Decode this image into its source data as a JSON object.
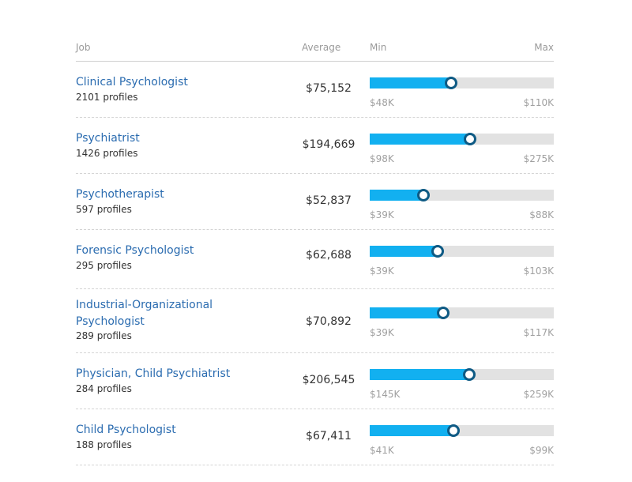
{
  "header": {
    "job": "Job",
    "average": "Average",
    "min": "Min",
    "max": "Max"
  },
  "colors": {
    "link": "#2b6cb0",
    "fill": "#12b0f0",
    "marker": "#0e5a84",
    "track": "#e2e2e2"
  },
  "rows": [
    {
      "job": "Clinical Psychologist",
      "profiles": "2101 profiles",
      "average": "$75,152",
      "min": "$48K",
      "max": "$110K",
      "position": 0.44
    },
    {
      "job": "Psychiatrist",
      "profiles": "1426 profiles",
      "average": "$194,669",
      "min": "$98K",
      "max": "$275K",
      "position": 0.545
    },
    {
      "job": "Psychotherapist",
      "profiles": "597 profiles",
      "average": "$52,837",
      "min": "$39K",
      "max": "$88K",
      "position": 0.29
    },
    {
      "job": "Forensic Psychologist",
      "profiles": "295 profiles",
      "average": "$62,688",
      "min": "$39K",
      "max": "$103K",
      "position": 0.37
    },
    {
      "job": "Industrial-Organizational Psychologist",
      "profiles": "289 profiles",
      "average": "$70,892",
      "min": "$39K",
      "max": "$117K",
      "position": 0.4
    },
    {
      "job": "Physician, Child Psychiatrist",
      "profiles": "284 profiles",
      "average": "$206,545",
      "min": "$145K",
      "max": "$259K",
      "position": 0.54
    },
    {
      "job": "Child Psychologist",
      "profiles": "188 profiles",
      "average": "$67,411",
      "min": "$41K",
      "max": "$99K",
      "position": 0.455
    }
  ]
}
